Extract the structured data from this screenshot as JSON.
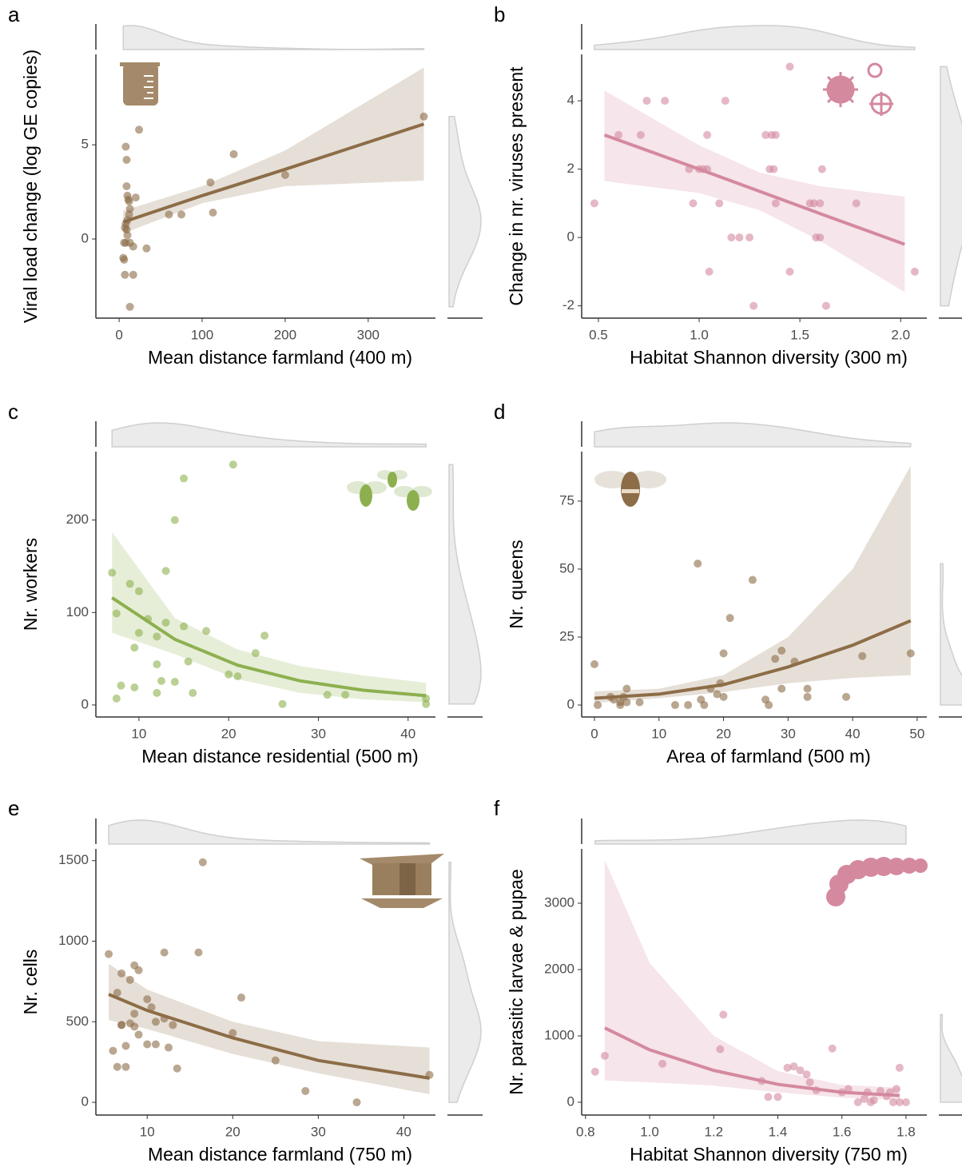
{
  "chart_data": [
    {
      "type": "scatter",
      "panel": "a",
      "xlabel": "Mean distance farmland (400 m)",
      "ylabel": "Viral load change (log GE copies)",
      "color": "#8c6d47",
      "x": [
        8,
        9,
        24,
        9,
        10,
        11,
        12,
        20,
        13,
        12,
        10,
        8,
        7,
        9,
        10,
        8,
        6,
        13,
        17,
        33,
        6,
        5,
        7,
        17,
        13,
        60,
        75,
        110,
        113,
        138,
        200,
        367
      ],
      "values": [
        4.9,
        4.2,
        5.8,
        2.8,
        2.3,
        2.1,
        2.0,
        2.2,
        1.6,
        1.3,
        1.0,
        0.8,
        0.6,
        0.5,
        0.2,
        -0.2,
        -0.2,
        -0.2,
        -0.4,
        -0.5,
        -1.1,
        -1.0,
        -1.9,
        -1.9,
        -3.6,
        1.3,
        1.3,
        3.0,
        1.4,
        4.5,
        3.4,
        6.5
      ],
      "fit": {
        "x": [
          5,
          100,
          200,
          367
        ],
        "values": [
          0.9,
          2.3,
          3.7,
          6.1
        ],
        "lower": [
          0.3,
          1.9,
          2.8,
          3.1
        ],
        "upper": [
          1.5,
          2.8,
          4.7,
          9.1
        ]
      },
      "xlim": [
        -28,
        381
      ],
      "ylim": [
        -4.2,
        9.8
      ],
      "xticks": [
        0,
        100,
        200,
        300
      ],
      "yticks": [
        0,
        5
      ]
    },
    {
      "type": "scatter",
      "panel": "b",
      "xlabel": "Habitat Shannon diversity (300 m)",
      "ylabel": "Change in nr. viruses present",
      "color": "#d4899f",
      "x": [
        0.48,
        0.6,
        0.71,
        0.74,
        0.83,
        0.95,
        0.97,
        1.0,
        1.02,
        1.04,
        1.05,
        1.04,
        1.1,
        1.13,
        1.16,
        1.2,
        1.25,
        1.27,
        1.33,
        1.36,
        1.38,
        1.35,
        1.37,
        1.38,
        1.45,
        1.45,
        1.55,
        1.57,
        1.58,
        1.6,
        1.6,
        1.61,
        1.63,
        1.78,
        2.07
      ],
      "values": [
        1,
        3,
        3,
        4,
        4,
        2,
        1,
        2,
        2,
        3,
        -1,
        2,
        1,
        4,
        0,
        0,
        0,
        -2,
        3,
        3,
        3,
        2,
        2,
        1,
        5,
        -1,
        1,
        1,
        0,
        0,
        1,
        2,
        -2,
        1,
        -1
      ],
      "fit": {
        "x": [
          0.53,
          1.0,
          1.3,
          1.6,
          2.02
        ],
        "values": [
          3.0,
          2.0,
          1.35,
          0.7,
          -0.2
        ],
        "lower": [
          1.65,
          1.3,
          0.8,
          -0.1,
          -1.6
        ],
        "upper": [
          4.3,
          2.7,
          1.9,
          1.5,
          1.2
        ]
      },
      "xlim": [
        0.417,
        2.13
      ],
      "ylim": [
        -2.36,
        5.36
      ],
      "xticks": [
        0.5,
        {
          "value": 1,
          "label": "1.0"
        },
        1.5,
        {
          "value": 2,
          "label": "2.0"
        }
      ],
      "yticks": [
        -2,
        0,
        2,
        4
      ]
    },
    {
      "type": "scatter",
      "panel": "c",
      "xlabel": "Mean distance residential (500 m)",
      "ylabel": "Nr. workers",
      "color": "#8db04f",
      "x": [
        7,
        7.5,
        7.5,
        8,
        9,
        9.5,
        10,
        10,
        9.5,
        11,
        12,
        12,
        12.5,
        13,
        13,
        12,
        14,
        14,
        15,
        15,
        15.5,
        16,
        17.5,
        20,
        20.5,
        21,
        23,
        24,
        26,
        31,
        33,
        42,
        42
      ],
      "values": [
        143,
        99,
        7,
        21,
        131,
        19,
        123,
        78,
        62,
        93,
        44,
        74,
        26,
        145,
        89,
        13,
        25,
        200,
        245,
        85,
        47,
        13,
        80,
        33,
        260,
        31,
        56,
        75,
        1,
        11,
        11,
        7,
        1
      ],
      "fit": {
        "x": [
          7,
          14,
          21,
          28,
          35,
          42
        ],
        "values": [
          116,
          71,
          43,
          26,
          16,
          10
        ],
        "lower": [
          78,
          55,
          28,
          13,
          6,
          3
        ],
        "upper": [
          187,
          94,
          60,
          42,
          32,
          24
        ]
      },
      "xlim": [
        5.2,
        43.05
      ],
      "ylim": [
        -13,
        274
      ],
      "xticks": [
        10,
        20,
        30,
        40
      ],
      "yticks": [
        0,
        100,
        200
      ]
    },
    {
      "type": "scatter",
      "panel": "d",
      "xlabel": "Area of farmland (500 m)",
      "ylabel": "Nr. queens",
      "color": "#8c6d47",
      "x": [
        0,
        0.5,
        2.5,
        3,
        4,
        4,
        4.5,
        5,
        5,
        7,
        12.5,
        14.5,
        16,
        16.5,
        17,
        18,
        19,
        19.5,
        20,
        20,
        21,
        24.5,
        26.5,
        27,
        28,
        29,
        29,
        31,
        33,
        33,
        39,
        41.5,
        49
      ],
      "values": [
        15,
        0,
        3,
        2,
        0,
        1,
        3,
        6,
        1,
        1,
        0,
        0,
        52,
        2,
        0,
        6,
        4,
        8,
        3,
        19,
        32,
        46,
        2,
        0,
        17,
        20,
        6,
        16,
        6,
        3,
        3,
        18,
        19
      ],
      "fit": {
        "x": [
          0,
          10,
          20,
          30,
          40,
          49
        ],
        "values": [
          2.5,
          4,
          7.5,
          14,
          22,
          31
        ],
        "lower": [
          0.8,
          2.5,
          4.8,
          8,
          10,
          11
        ],
        "upper": [
          5,
          6,
          11,
          25,
          50,
          88
        ]
      },
      "xlim": [
        -1.98,
        51.5
      ],
      "ylim": [
        -4.4,
        93.2
      ],
      "xticks": [
        0,
        10,
        20,
        30,
        40,
        50
      ],
      "yticks": [
        0,
        25,
        50,
        75
      ]
    },
    {
      "type": "scatter",
      "panel": "e",
      "xlabel": "Mean distance farmland (750 m)",
      "ylabel": "Nr. cells",
      "color": "#8c6d47",
      "x": [
        5.5,
        6,
        6.5,
        6.5,
        7,
        7,
        7.5,
        7,
        7.5,
        8,
        8,
        8.5,
        8.5,
        9,
        8.5,
        9,
        10,
        10,
        10.5,
        11,
        11,
        12,
        12,
        12.5,
        13,
        13.5,
        16,
        16.5,
        20,
        21,
        25,
        28.5,
        34.5,
        43
      ],
      "values": [
        920,
        320,
        220,
        680,
        480,
        800,
        350,
        480,
        220,
        760,
        490,
        470,
        850,
        820,
        550,
        420,
        640,
        360,
        590,
        360,
        500,
        930,
        520,
        340,
        480,
        210,
        930,
        1490,
        430,
        650,
        260,
        70,
        0,
        170
      ],
      "fit": {
        "x": [
          5.5,
          10,
          20,
          30,
          43
        ],
        "values": [
          670,
          570,
          400,
          260,
          150
        ],
        "lower": [
          510,
          455,
          300,
          180,
          50
        ],
        "upper": [
          860,
          700,
          500,
          380,
          340
        ]
      },
      "xlim": [
        4.0,
        43.7
      ],
      "ylim": [
        -79,
        1573
      ],
      "xticks": [
        10,
        20,
        30,
        40
      ],
      "yticks": [
        0,
        500,
        1000,
        1500
      ]
    },
    {
      "type": "scatter",
      "panel": "f",
      "xlabel": "Habitat Shannon diversity (750 m)",
      "ylabel": "Nr. parasitic larvae & pupae",
      "color": "#d4899f",
      "x": [
        0.83,
        0.86,
        1.04,
        1.22,
        1.23,
        1.35,
        1.37,
        1.4,
        1.43,
        1.45,
        1.47,
        1.49,
        1.5,
        1.52,
        1.57,
        1.6,
        1.62,
        1.65,
        1.67,
        1.68,
        1.69,
        1.7,
        1.72,
        1.74,
        1.75,
        1.76,
        1.77,
        1.78,
        1.78,
        1.8
      ],
      "values": [
        460,
        700,
        580,
        800,
        1320,
        320,
        80,
        80,
        520,
        540,
        480,
        420,
        300,
        180,
        810,
        150,
        200,
        0,
        50,
        150,
        0,
        30,
        170,
        90,
        150,
        0,
        200,
        520,
        0,
        0
      ],
      "fit": {
        "x": [
          0.86,
          1.0,
          1.2,
          1.4,
          1.6,
          1.78
        ],
        "values": [
          1120,
          790,
          480,
          270,
          150,
          100
        ],
        "lower": [
          330,
          300,
          250,
          150,
          70,
          30
        ],
        "upper": [
          3650,
          2100,
          1000,
          470,
          260,
          220
        ]
      },
      "xlim": [
        0.788,
        1.865
      ],
      "ylim": [
        -193,
        3819
      ],
      "xticks": [
        0.8,
        {
          "value": 1,
          "label": "1.0"
        },
        1.2,
        1.4,
        1.6,
        1.8
      ],
      "yticks": [
        0,
        1000,
        2000,
        3000
      ]
    }
  ]
}
